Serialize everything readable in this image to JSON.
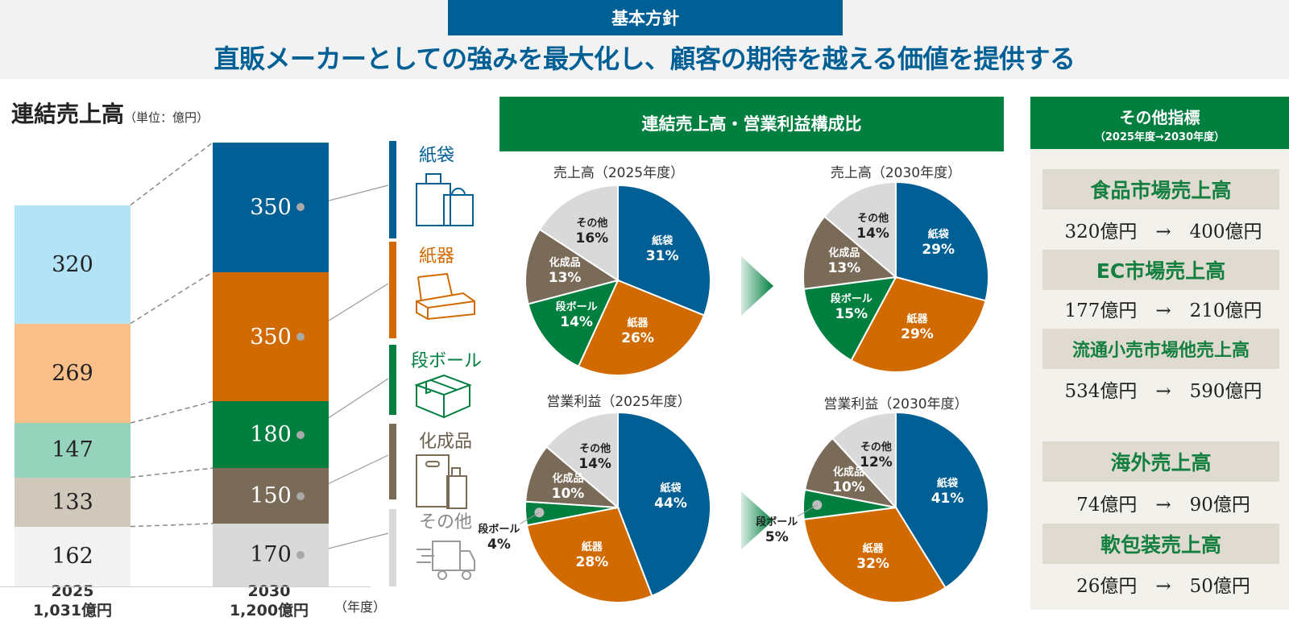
{
  "header": {
    "tag": "基本方針",
    "headline": "直販メーカーとしての強みを最大化し、顧客の期待を越える価値を提供する"
  },
  "sales_section": {
    "title": "連結売上高",
    "unit": "（単位：億円）",
    "year_unit": "（年度）",
    "years": [
      {
        "year": "2025",
        "total": "1,031億円"
      },
      {
        "year": "2030",
        "total": "1,200億円"
      }
    ]
  },
  "legend": [
    {
      "label": "紙袋",
      "color": "#005f94",
      "icon": "shopping-bags-icon"
    },
    {
      "label": "紙器",
      "color": "#d16a00",
      "icon": "paper-box-icon"
    },
    {
      "label": "段ボール",
      "color": "#007f3f",
      "icon": "cardboard-box-icon"
    },
    {
      "label": "化成品",
      "color": "#7a6a58",
      "icon": "plastic-bag-bottle-icon"
    },
    {
      "label": "その他",
      "color": "#d9d9d9",
      "icon": "delivery-truck-icon"
    }
  ],
  "composition": {
    "title": "連結売上高・営業利益構成比",
    "pies": [
      {
        "title": "売上高（2025年度）"
      },
      {
        "title": "売上高（2030年度）"
      },
      {
        "title": "営業利益（2025年度）"
      },
      {
        "title": "営業利益（2030年度）"
      }
    ]
  },
  "kpis": {
    "title": "その他指標",
    "subtitle": "（2025年度→2030年度）",
    "items": [
      {
        "name": "食品市場売上高",
        "value": "320億円　→　400億円"
      },
      {
        "name": "EC市場売上高",
        "value": "177億円　→　210億円"
      },
      {
        "name": "流通小売市場他売上高",
        "value": "534億円　→　590億円"
      },
      {
        "name": "海外売上高",
        "value": "74億円　→　90億円"
      },
      {
        "name": "軟包装売上高",
        "value": "26億円　→　50億円"
      }
    ]
  },
  "chart_data": [
    {
      "type": "bar",
      "title": "連結売上高（単位：億円）",
      "stacked": true,
      "categories": [
        "2025",
        "2030"
      ],
      "category_totals": [
        "1,031億円",
        "1,200億円"
      ],
      "xlabel": "（年度）",
      "series": [
        {
          "name": "紙袋",
          "values": [
            320,
            350
          ],
          "colors": [
            "#b3e3f7",
            "#005f94"
          ]
        },
        {
          "name": "紙器",
          "values": [
            269,
            350
          ],
          "colors": [
            "#fbc08a",
            "#d16a00"
          ]
        },
        {
          "name": "段ボール",
          "values": [
            147,
            180
          ],
          "colors": [
            "#96d3bc",
            "#007f3f"
          ]
        },
        {
          "name": "化成品",
          "values": [
            133,
            150
          ],
          "colors": [
            "#cfc8bb",
            "#7a6a58"
          ]
        },
        {
          "name": "その他",
          "values": [
            162,
            170
          ],
          "colors": [
            "#f2f2f2",
            "#d9d9d9"
          ]
        }
      ]
    },
    {
      "type": "pie",
      "title": "売上高（2025年度）",
      "labels": [
        "紙袋",
        "紙器",
        "段ボール",
        "化成品",
        "その他"
      ],
      "values": [
        31,
        26,
        14,
        13,
        16
      ],
      "unit": "%"
    },
    {
      "type": "pie",
      "title": "売上高（2030年度）",
      "labels": [
        "紙袋",
        "紙器",
        "段ボール",
        "化成品",
        "その他"
      ],
      "values": [
        29,
        29,
        15,
        13,
        14
      ],
      "unit": "%"
    },
    {
      "type": "pie",
      "title": "営業利益（2025年度）",
      "labels": [
        "紙袋",
        "紙器",
        "段ボール",
        "化成品",
        "その他"
      ],
      "values": [
        44,
        28,
        4,
        10,
        14
      ],
      "unit": "%"
    },
    {
      "type": "pie",
      "title": "営業利益（2030年度）",
      "labels": [
        "紙袋",
        "紙器",
        "段ボール",
        "化成品",
        "その他"
      ],
      "values": [
        41,
        32,
        5,
        10,
        12
      ],
      "unit": "%"
    }
  ]
}
